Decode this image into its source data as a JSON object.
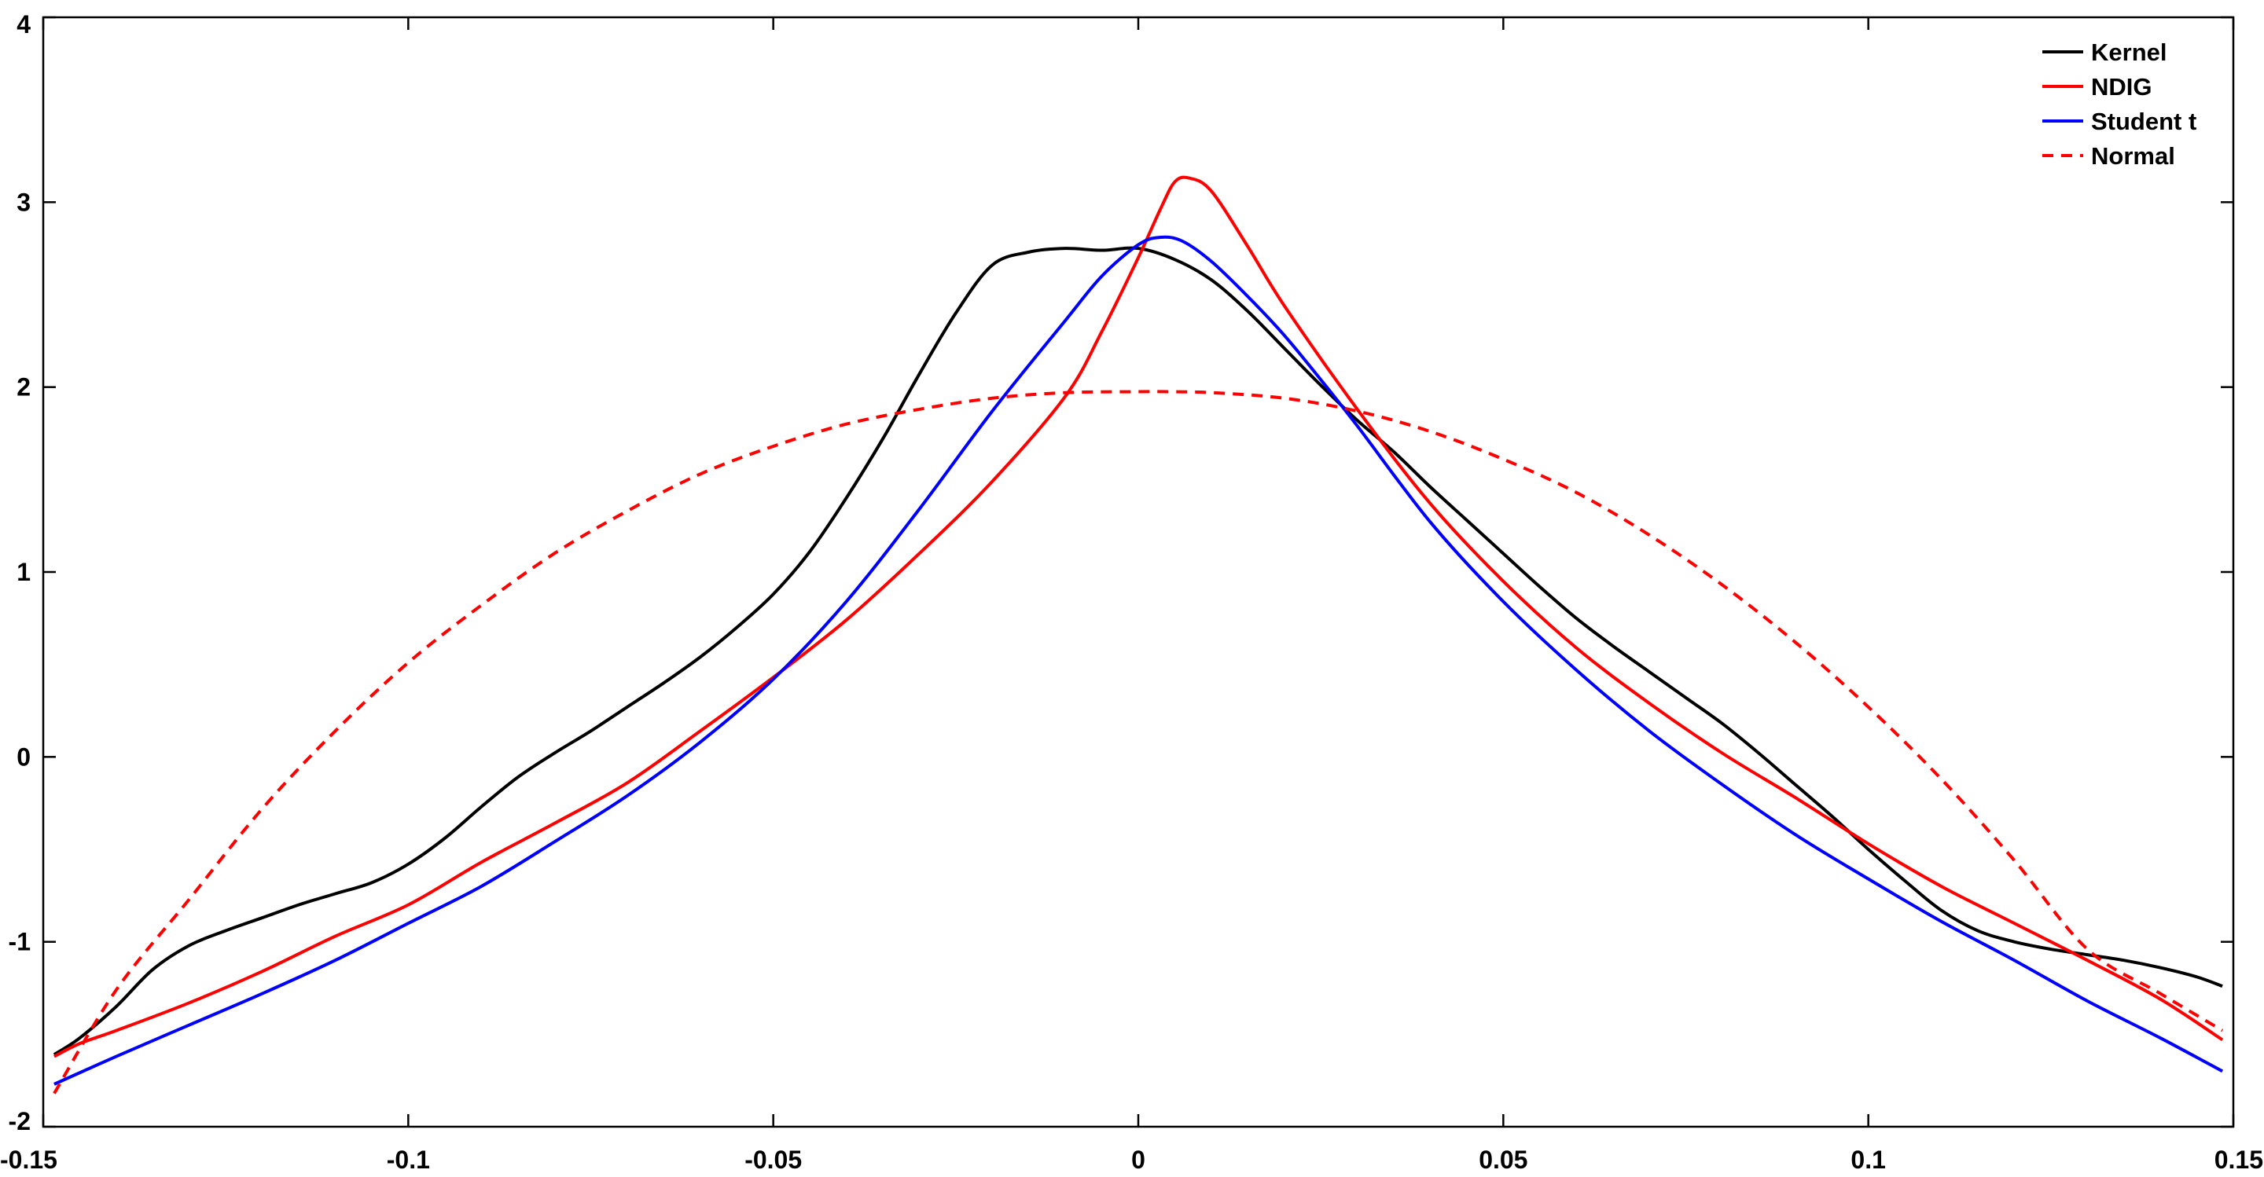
{
  "chart_data": {
    "type": "line",
    "title": "",
    "xlabel": "",
    "ylabel": "",
    "xlim": [
      -0.15,
      0.15
    ],
    "ylim": [
      -2,
      4
    ],
    "grid": false,
    "legend_position": "top-right",
    "x_ticks": [
      {
        "value": -0.15,
        "label": "-0.15"
      },
      {
        "value": -0.1,
        "label": "-0.1"
      },
      {
        "value": -0.05,
        "label": "-0.05"
      },
      {
        "value": 0,
        "label": "0"
      },
      {
        "value": 0.05,
        "label": "0.05"
      },
      {
        "value": 0.1,
        "label": "0.1"
      },
      {
        "value": 0.15,
        "label": "0.15"
      }
    ],
    "y_ticks": [
      {
        "value": -2,
        "label": "-2"
      },
      {
        "value": -1,
        "label": "-1"
      },
      {
        "value": 0,
        "label": "0"
      },
      {
        "value": 1,
        "label": "1"
      },
      {
        "value": 2,
        "label": "2"
      },
      {
        "value": 3,
        "label": "3"
      },
      {
        "value": 4,
        "label": "4"
      }
    ],
    "series": [
      {
        "name": "Kernel",
        "color": "#000000",
        "dash": "solid",
        "x": [
          -0.1485,
          -0.145,
          -0.14,
          -0.135,
          -0.13,
          -0.125,
          -0.12,
          -0.115,
          -0.11,
          -0.105,
          -0.1,
          -0.095,
          -0.09,
          -0.085,
          -0.08,
          -0.075,
          -0.07,
          -0.065,
          -0.06,
          -0.055,
          -0.05,
          -0.045,
          -0.04,
          -0.035,
          -0.03,
          -0.025,
          -0.02,
          -0.015,
          -0.01,
          -0.005,
          0,
          0.005,
          0.01,
          0.015,
          0.02,
          0.025,
          0.03,
          0.035,
          0.04,
          0.045,
          0.05,
          0.055,
          0.06,
          0.065,
          0.07,
          0.075,
          0.08,
          0.085,
          0.09,
          0.095,
          0.1,
          0.105,
          0.11,
          0.115,
          0.12,
          0.125,
          0.13,
          0.135,
          0.14,
          0.145,
          0.1485
        ],
        "y": [
          -1.61,
          -1.52,
          -1.35,
          -1.15,
          -1.02,
          -0.94,
          -0.87,
          -0.8,
          -0.74,
          -0.68,
          -0.58,
          -0.44,
          -0.27,
          -0.11,
          0.02,
          0.14,
          0.27,
          0.4,
          0.54,
          0.7,
          0.88,
          1.11,
          1.4,
          1.72,
          2.07,
          2.4,
          2.66,
          2.73,
          2.75,
          2.74,
          2.75,
          2.69,
          2.58,
          2.41,
          2.21,
          2.01,
          1.82,
          1.65,
          1.46,
          1.28,
          1.1,
          0.92,
          0.75,
          0.6,
          0.46,
          0.32,
          0.18,
          0.02,
          -0.15,
          -0.32,
          -0.5,
          -0.67,
          -0.83,
          -0.94,
          -1.0,
          -1.04,
          -1.07,
          -1.1,
          -1.14,
          -1.19,
          -1.24
        ]
      },
      {
        "name": "NDIG",
        "color": "#ff0000",
        "dash": "solid",
        "x": [
          -0.1485,
          -0.145,
          -0.14,
          -0.13,
          -0.12,
          -0.11,
          -0.1,
          -0.09,
          -0.08,
          -0.07,
          -0.06,
          -0.05,
          -0.04,
          -0.03,
          -0.02,
          -0.01,
          -0.005,
          0,
          0.003,
          0.005,
          0.007,
          0.01,
          0.015,
          0.02,
          0.03,
          0.04,
          0.05,
          0.06,
          0.07,
          0.08,
          0.09,
          0.1,
          0.11,
          0.12,
          0.13,
          0.14,
          0.1485
        ],
        "y": [
          -1.62,
          -1.55,
          -1.48,
          -1.33,
          -1.16,
          -0.97,
          -0.8,
          -0.57,
          -0.36,
          -0.14,
          0.14,
          0.43,
          0.74,
          1.1,
          1.49,
          1.95,
          2.3,
          2.7,
          2.96,
          3.11,
          3.13,
          3.06,
          2.76,
          2.44,
          1.88,
          1.37,
          0.95,
          0.59,
          0.29,
          0.02,
          -0.22,
          -0.47,
          -0.7,
          -0.9,
          -1.1,
          -1.31,
          -1.53
        ]
      },
      {
        "name": "Student t",
        "color": "#0000ff",
        "dash": "solid",
        "x": [
          -0.1485,
          -0.14,
          -0.13,
          -0.12,
          -0.11,
          -0.1,
          -0.09,
          -0.08,
          -0.07,
          -0.06,
          -0.05,
          -0.04,
          -0.03,
          -0.02,
          -0.01,
          -0.005,
          0,
          0.003,
          0.006,
          0.01,
          0.015,
          0.02,
          0.025,
          0.03,
          0.04,
          0.05,
          0.06,
          0.07,
          0.08,
          0.09,
          0.1,
          0.11,
          0.12,
          0.13,
          0.14,
          0.1485
        ],
        "y": [
          -1.77,
          -1.62,
          -1.45,
          -1.28,
          -1.1,
          -0.9,
          -0.7,
          -0.46,
          -0.21,
          0.08,
          0.42,
          0.84,
          1.34,
          1.87,
          2.36,
          2.6,
          2.77,
          2.81,
          2.79,
          2.68,
          2.49,
          2.28,
          2.04,
          1.79,
          1.27,
          0.84,
          0.47,
          0.14,
          -0.15,
          -0.42,
          -0.66,
          -0.89,
          -1.1,
          -1.32,
          -1.52,
          -1.7
        ]
      },
      {
        "name": "Normal",
        "color": "#ff0000",
        "dash": "dashed",
        "x": [
          -0.1485,
          -0.14,
          -0.13,
          -0.12,
          -0.11,
          -0.1,
          -0.09,
          -0.08,
          -0.07,
          -0.06,
          -0.05,
          -0.04,
          -0.03,
          -0.02,
          -0.01,
          0,
          0.004,
          0.01,
          0.02,
          0.03,
          0.04,
          0.05,
          0.06,
          0.07,
          0.08,
          0.09,
          0.1,
          0.11,
          0.12,
          0.13,
          0.14,
          0.1485
        ],
        "y": [
          -1.82,
          -1.26,
          -0.77,
          -0.28,
          0.14,
          0.51,
          0.82,
          1.1,
          1.33,
          1.53,
          1.68,
          1.8,
          1.88,
          1.94,
          1.97,
          1.975,
          1.975,
          1.97,
          1.94,
          1.87,
          1.76,
          1.61,
          1.43,
          1.2,
          0.93,
          0.62,
          0.27,
          -0.12,
          -0.56,
          -1.04,
          -1.28,
          -1.48
        ]
      }
    ],
    "legend": [
      {
        "label": "Kernel",
        "color": "#000000",
        "dash": "solid"
      },
      {
        "label": "NDIG",
        "color": "#ff0000",
        "dash": "solid"
      },
      {
        "label": "Student t",
        "color": "#0000ff",
        "dash": "solid"
      },
      {
        "label": "Normal",
        "color": "#ff0000",
        "dash": "dashed"
      }
    ]
  }
}
